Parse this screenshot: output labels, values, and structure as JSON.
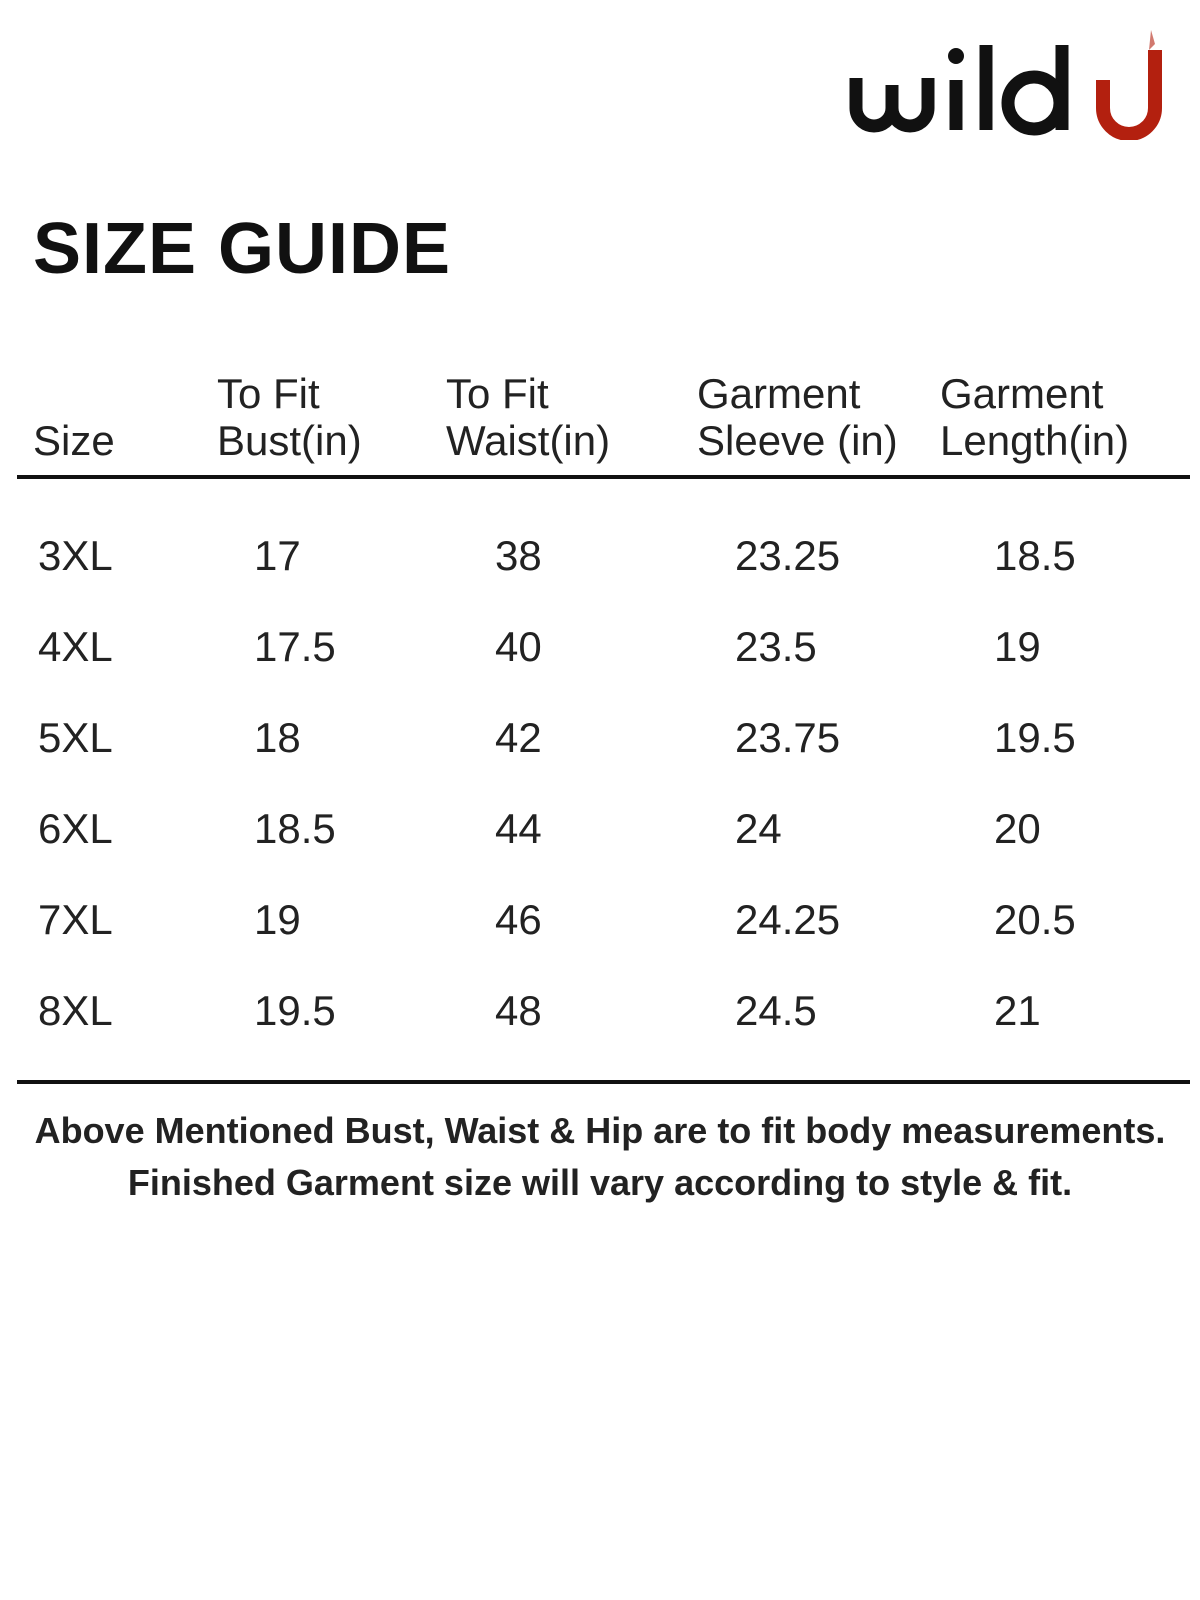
{
  "brand": {
    "logo_text": "wild U",
    "accent_color": "#b3200f"
  },
  "title": "SIZE GUIDE",
  "table": {
    "headers": [
      [
        "",
        "Size"
      ],
      [
        "To Fit",
        "Bust(in)"
      ],
      [
        "To Fit",
        "Waist(in)"
      ],
      [
        "Garment",
        "Sleeve (in)"
      ],
      [
        "Garment",
        "Length(in)"
      ]
    ],
    "rows": [
      [
        "3XL",
        "17",
        "38",
        "23.25",
        "18.5"
      ],
      [
        "4XL",
        "17.5",
        "40",
        "23.5",
        "19"
      ],
      [
        "5XL",
        "18",
        "42",
        "23.75",
        "19.5"
      ],
      [
        "6XL",
        "18.5",
        "44",
        "24",
        "20"
      ],
      [
        "7XL",
        "19",
        "46",
        "24.25",
        "20.5"
      ],
      [
        "8XL",
        "19.5",
        "48",
        "24.5",
        "21"
      ]
    ]
  },
  "note": [
    "Above Mentioned Bust, Waist & Hip are to fit body measurements.",
    "Finished Garment size will vary according to style & fit."
  ]
}
